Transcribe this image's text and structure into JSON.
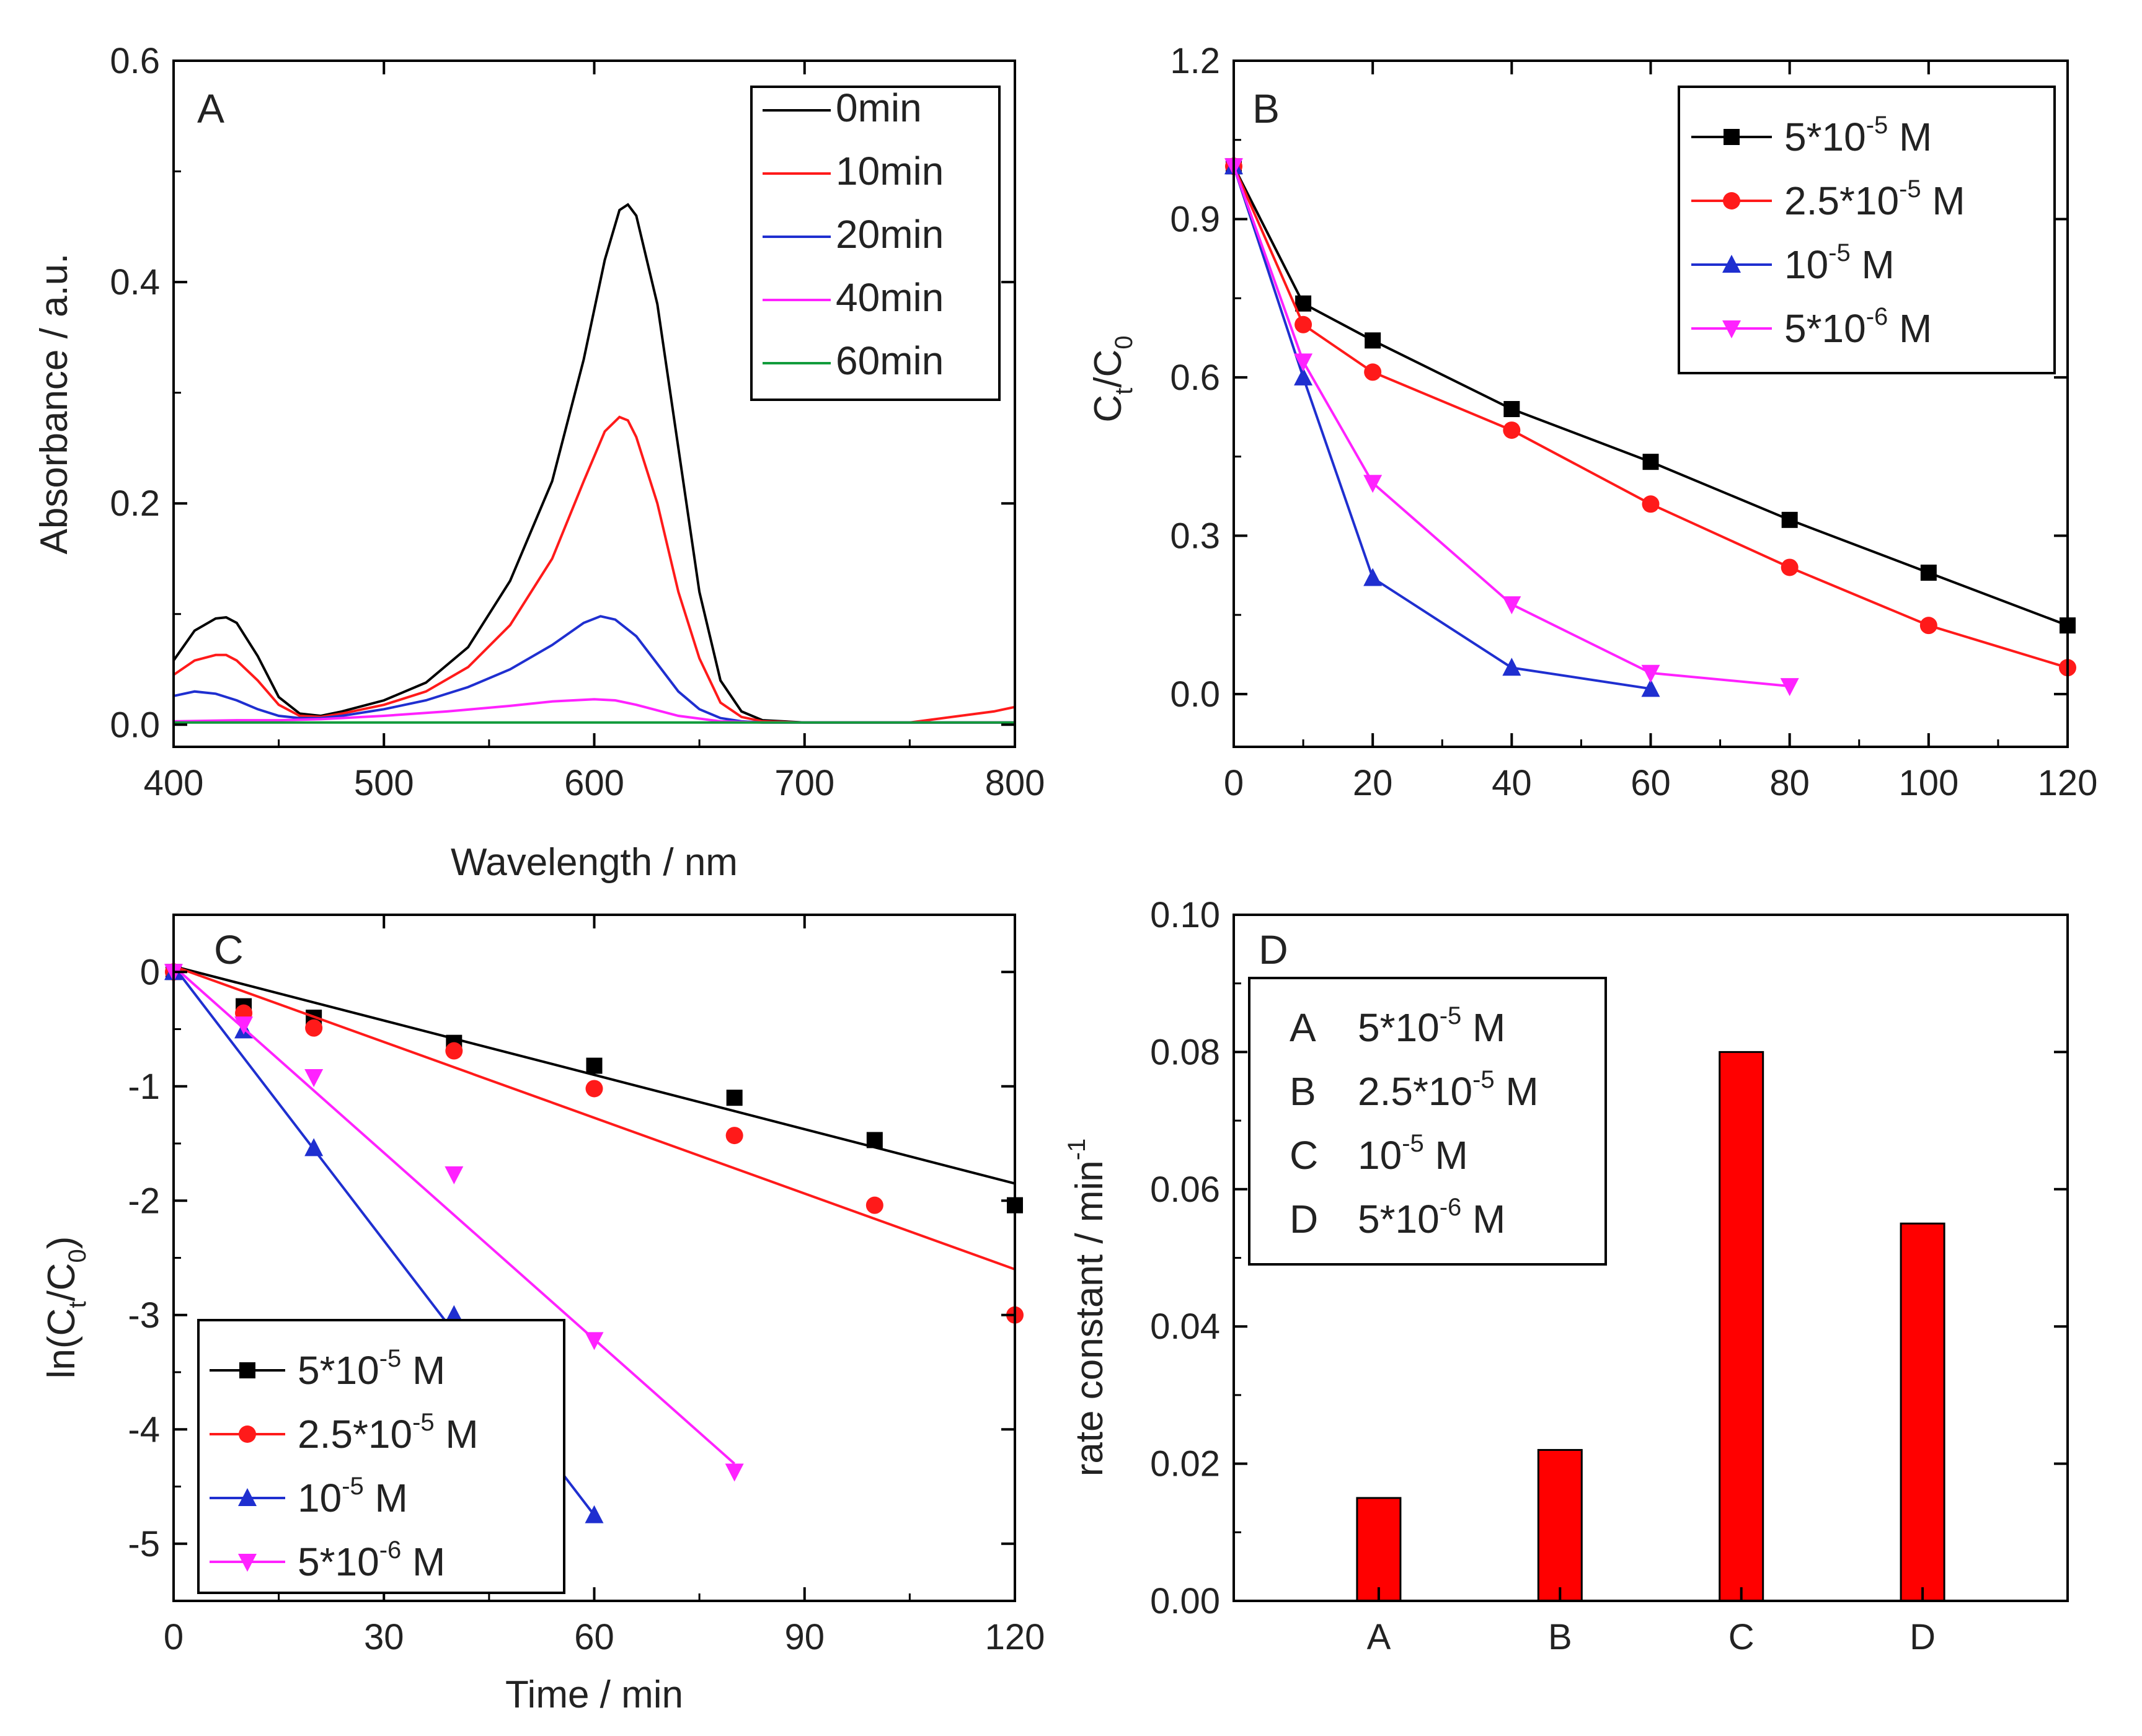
{
  "colors": {
    "black": "#000000",
    "red": "#ff1a1a",
    "blue": "#1f2fd0",
    "magenta": "#ff22ff",
    "green": "#119b3b",
    "bar": "#ff0000"
  },
  "chart_data": [
    {
      "type": "line",
      "panel_label": "A",
      "xlabel": "Wavelength / nm",
      "ylabel": "Absorbance / a.u.",
      "xlim": [
        400,
        800
      ],
      "ylim": [
        -0.02,
        0.6
      ],
      "xticks": [
        "400",
        "500",
        "600",
        "700",
        "800"
      ],
      "yticks": [
        "0.0",
        "0.2",
        "0.4",
        "0.6"
      ],
      "legend": [
        "0min",
        "10min",
        "20min",
        "40min",
        "60min"
      ],
      "series": [
        {
          "name": "0min",
          "color": "#000000",
          "x": [
            400,
            410,
            420,
            425,
            430,
            440,
            450,
            460,
            470,
            480,
            500,
            520,
            540,
            560,
            580,
            595,
            605,
            612,
            616,
            620,
            630,
            640,
            650,
            660,
            670,
            680,
            700,
            750,
            800
          ],
          "y": [
            0.058,
            0.085,
            0.096,
            0.097,
            0.092,
            0.062,
            0.025,
            0.01,
            0.008,
            0.012,
            0.022,
            0.038,
            0.07,
            0.13,
            0.22,
            0.33,
            0.42,
            0.465,
            0.47,
            0.46,
            0.38,
            0.25,
            0.12,
            0.04,
            0.012,
            0.004,
            0.002,
            0.002,
            0.002
          ]
        },
        {
          "name": "10min",
          "color": "#ff1a1a",
          "x": [
            400,
            410,
            420,
            425,
            430,
            440,
            450,
            460,
            470,
            480,
            500,
            520,
            540,
            560,
            580,
            595,
            605,
            612,
            616,
            620,
            630,
            640,
            650,
            660,
            670,
            680,
            700,
            750,
            790,
            800
          ],
          "y": [
            0.045,
            0.058,
            0.063,
            0.063,
            0.058,
            0.04,
            0.018,
            0.008,
            0.007,
            0.01,
            0.018,
            0.03,
            0.052,
            0.09,
            0.15,
            0.22,
            0.265,
            0.278,
            0.275,
            0.26,
            0.2,
            0.12,
            0.06,
            0.02,
            0.007,
            0.003,
            0.002,
            0.002,
            0.012,
            0.016
          ]
        },
        {
          "name": "20min",
          "color": "#1f2fd0",
          "x": [
            400,
            410,
            420,
            430,
            440,
            450,
            460,
            470,
            480,
            500,
            520,
            540,
            560,
            580,
            595,
            603,
            610,
            620,
            630,
            640,
            650,
            660,
            670,
            680,
            700,
            800
          ],
          "y": [
            0.026,
            0.03,
            0.028,
            0.022,
            0.014,
            0.008,
            0.006,
            0.006,
            0.008,
            0.014,
            0.022,
            0.034,
            0.05,
            0.072,
            0.092,
            0.098,
            0.095,
            0.08,
            0.055,
            0.03,
            0.014,
            0.006,
            0.003,
            0.002,
            0.002,
            0.002
          ]
        },
        {
          "name": "40min",
          "color": "#ff22ff",
          "x": [
            400,
            430,
            450,
            470,
            500,
            530,
            560,
            580,
            600,
            610,
            620,
            640,
            660,
            680,
            700,
            800
          ],
          "y": [
            0.003,
            0.004,
            0.004,
            0.005,
            0.008,
            0.012,
            0.017,
            0.021,
            0.023,
            0.022,
            0.018,
            0.008,
            0.003,
            0.002,
            0.002,
            0.002
          ]
        },
        {
          "name": "60min",
          "color": "#119b3b",
          "x": [
            400,
            800
          ],
          "y": [
            0.002,
            0.002
          ]
        }
      ]
    },
    {
      "type": "line",
      "panel_label": "B",
      "xlabel": "",
      "ylabel": "Ct/C0",
      "xlim": [
        0,
        120
      ],
      "ylim": [
        -0.1,
        1.2
      ],
      "xticks": [
        "0",
        "20",
        "40",
        "60",
        "80",
        "100",
        "120"
      ],
      "yticks": [
        "0.0",
        "0.3",
        "0.6",
        "0.9",
        "1.2"
      ],
      "legend": [
        "5*10-5 M",
        "2.5*10-5 M",
        "10-5 M",
        "5*10-6 M"
      ],
      "series": [
        {
          "name": "5*10-5 M",
          "marker": "square",
          "color": "#000000",
          "x": [
            0,
            10,
            20,
            40,
            60,
            80,
            100,
            120
          ],
          "y": [
            1.0,
            0.74,
            0.67,
            0.54,
            0.44,
            0.33,
            0.23,
            0.13
          ]
        },
        {
          "name": "2.5*10-5 M",
          "marker": "circle",
          "color": "#ff1a1a",
          "x": [
            0,
            10,
            20,
            40,
            60,
            80,
            100,
            120
          ],
          "y": [
            1.0,
            0.7,
            0.61,
            0.5,
            0.36,
            0.24,
            0.13,
            0.05
          ]
        },
        {
          "name": "10-5 M",
          "marker": "triangle-up",
          "color": "#1f2fd0",
          "x": [
            0,
            10,
            20,
            40,
            60
          ],
          "y": [
            1.0,
            0.6,
            0.22,
            0.05,
            0.01
          ]
        },
        {
          "name": "5*10-6 M",
          "marker": "triangle-down",
          "color": "#ff22ff",
          "x": [
            0,
            10,
            20,
            40,
            60,
            80
          ],
          "y": [
            1.0,
            0.63,
            0.4,
            0.17,
            0.04,
            0.015
          ]
        }
      ]
    },
    {
      "type": "scatter",
      "panel_label": "C",
      "xlabel": "Time / min",
      "ylabel": "ln(Ct/C0)",
      "xlim": [
        0,
        120
      ],
      "ylim": [
        -5.5,
        0.5
      ],
      "xticks": [
        "0",
        "30",
        "60",
        "90",
        "120"
      ],
      "yticks": [
        "0",
        "-1",
        "-2",
        "-3",
        "-4",
        "-5"
      ],
      "legend": [
        "5*10-5 M",
        "2.5*10-5 M",
        "10-5 M",
        "5*10-6 M"
      ],
      "series": [
        {
          "name": "5*10-5 M",
          "marker": "square",
          "color": "#000000",
          "x": [
            0,
            10,
            20,
            40,
            60,
            80,
            100,
            120
          ],
          "y": [
            0,
            -0.3,
            -0.4,
            -0.62,
            -0.82,
            -1.1,
            -1.47,
            -2.04
          ],
          "fit": [
            [
              0,
              0.05
            ],
            [
              120,
              -1.85
            ]
          ]
        },
        {
          "name": "2.5*10-5 M",
          "marker": "circle",
          "color": "#ff1a1a",
          "x": [
            0,
            10,
            20,
            40,
            60,
            80,
            100,
            120
          ],
          "y": [
            0,
            -0.36,
            -0.49,
            -0.69,
            -1.02,
            -1.43,
            -2.04,
            -3.0
          ],
          "fit": [
            [
              0,
              0.05
            ],
            [
              120,
              -2.6
            ]
          ]
        },
        {
          "name": "10-5 M",
          "marker": "triangle-up",
          "color": "#1f2fd0",
          "x": [
            0,
            10,
            20,
            40,
            60
          ],
          "y": [
            0,
            -0.51,
            -1.54,
            -3.0,
            -4.75
          ],
          "fit": [
            [
              0,
              0.05
            ],
            [
              60,
              -4.75
            ]
          ]
        },
        {
          "name": "5*10-6 M",
          "marker": "triangle-down",
          "color": "#ff22ff",
          "x": [
            0,
            10,
            20,
            40,
            60,
            80
          ],
          "y": [
            0,
            -0.46,
            -0.92,
            -1.77,
            -3.22,
            -4.37
          ],
          "fit": [
            [
              0,
              0.05
            ],
            [
              80,
              -4.3
            ]
          ]
        }
      ]
    },
    {
      "type": "bar",
      "panel_label": "D",
      "xlabel": "",
      "ylabel": "rate constant / min-1",
      "ylim": [
        0,
        0.1
      ],
      "yticks": [
        "0.00",
        "0.02",
        "0.04",
        "0.06",
        "0.08",
        "0.10"
      ],
      "categories": [
        "A",
        "B",
        "C",
        "D"
      ],
      "values": [
        0.015,
        0.022,
        0.08,
        0.055
      ],
      "legend": [
        {
          "key": "A",
          "label": "5*10-5 M"
        },
        {
          "key": "B",
          "label": "2.5*10-5 M"
        },
        {
          "key": "C",
          "label": "10-5 M"
        },
        {
          "key": "D",
          "label": "5*10-6 M"
        }
      ]
    }
  ]
}
